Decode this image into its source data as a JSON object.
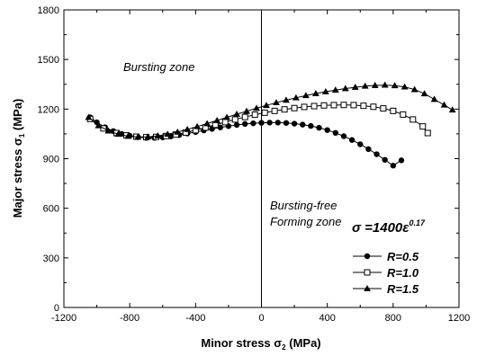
{
  "chart_data": {
    "type": "scatter",
    "xlabel_main": "Minor stress σ",
    "xlabel_sub": "2",
    "xlabel_unit": " (MPa)",
    "ylabel_main": "Major stress σ",
    "ylabel_sub": "1",
    "ylabel_unit": " (MPa)",
    "xlim": [
      -1200,
      1200
    ],
    "ylim": [
      0,
      1800
    ],
    "xticks": [
      -1200,
      -800,
      -400,
      0,
      400,
      800,
      1200
    ],
    "yticks": [
      0,
      300,
      600,
      900,
      1200,
      1500,
      1800
    ],
    "grid": false,
    "annotations": {
      "bursting_zone": "Bursting zone",
      "free_zone_line1": "Bursting-free",
      "free_zone_line2": "Forming zone",
      "equation_main": "σ =1400ε",
      "equation_exp": "0.17"
    },
    "legend_position": "bottom-right",
    "series": [
      {
        "name": "R=0.5",
        "marker": "filled-circle",
        "x": [
          -1040,
          -1000,
          -950,
          -900,
          -850,
          -800,
          -750,
          -700,
          -650,
          -600,
          -550,
          -500,
          -450,
          -400,
          -350,
          -300,
          -250,
          -200,
          -150,
          -100,
          -50,
          0,
          50,
          100,
          150,
          200,
          250,
          300,
          350,
          400,
          450,
          500,
          550,
          600,
          650,
          700,
          750,
          800,
          850
        ],
        "y": [
          1150,
          1120,
          1090,
          1067,
          1050,
          1038,
          1030,
          1026,
          1026,
          1029,
          1035,
          1043,
          1052,
          1061,
          1071,
          1080,
          1089,
          1097,
          1104,
          1110,
          1114,
          1117,
          1118,
          1118,
          1116,
          1112,
          1106,
          1098,
          1087,
          1073,
          1056,
          1036,
          1013,
          987,
          958,
          927,
          893,
          858,
          890
        ]
      },
      {
        "name": "R=1.0",
        "marker": "open-square",
        "x": [
          -1040,
          -960,
          -880,
          -820,
          -760,
          -700,
          -640,
          -580,
          -520,
          -460,
          -400,
          -340,
          -280,
          -220,
          -160,
          -100,
          -40,
          20,
          80,
          140,
          200,
          260,
          320,
          380,
          440,
          500,
          560,
          620,
          680,
          740,
          800,
          860,
          920,
          980,
          1010
        ],
        "y": [
          1140,
          1083,
          1055,
          1041,
          1033,
          1030,
          1032,
          1037,
          1046,
          1058,
          1072,
          1088,
          1105,
          1121,
          1137,
          1152,
          1166,
          1178,
          1189,
          1198,
          1206,
          1213,
          1218,
          1222,
          1224,
          1225,
          1224,
          1220,
          1214,
          1204,
          1189,
          1167,
          1137,
          1095,
          1055
        ]
      },
      {
        "name": "R=1.5",
        "marker": "filled-triangle",
        "x": [
          -1050,
          -990,
          -930,
          -870,
          -810,
          -750,
          -690,
          -630,
          -570,
          -510,
          -450,
          -390,
          -330,
          -270,
          -210,
          -150,
          -90,
          -30,
          30,
          90,
          150,
          210,
          270,
          330,
          390,
          450,
          510,
          570,
          630,
          690,
          750,
          810,
          870,
          930,
          990,
          1050,
          1110,
          1160
        ],
        "y": [
          1150,
          1100,
          1068,
          1048,
          1036,
          1031,
          1032,
          1038,
          1048,
          1061,
          1077,
          1094,
          1112,
          1131,
          1150,
          1169,
          1187,
          1205,
          1222,
          1239,
          1254,
          1268,
          1282,
          1294,
          1305,
          1315,
          1324,
          1332,
          1339,
          1343,
          1345,
          1342,
          1334,
          1318,
          1293,
          1259,
          1225,
          1195
        ]
      }
    ]
  }
}
